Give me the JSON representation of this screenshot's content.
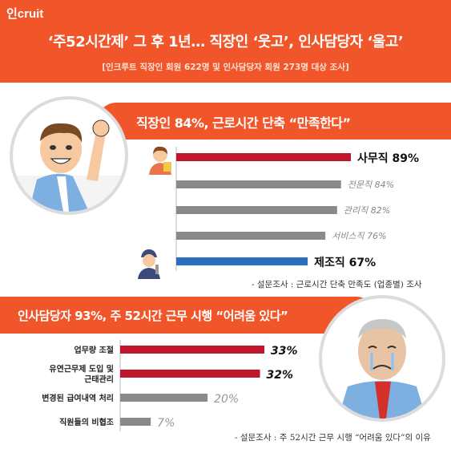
{
  "header": {
    "logo": "인cruit",
    "title": "‘주52시간제’ 그 후 1년… 직장인 ‘웃고’, 인사담당자 ‘울고’",
    "subtitle": "[인크루트 직장인 회원 622명 및 인사담당자 회원 273명 대상 조사]"
  },
  "section1": {
    "banner": "직장인 84%, 근로시간 단축 “만족한다”",
    "source": "- 설문조사 : 근로시간 단축 만족도 (업종별) 조사"
  },
  "section2": {
    "banner": "인사담당자 93%, 주 52시간 근무 시행 “어려움 있다”",
    "source": "- 설문조사 : 주 52시간 근무 시행 “어려움 있다”의 이유"
  },
  "colors": {
    "accent": "#f0562a",
    "red": "#c0152a",
    "gray": "#8a8a8a",
    "blue": "#2a6fbf"
  },
  "chart_data": [
    {
      "type": "bar",
      "orientation": "horizontal",
      "categories": [
        "사무직",
        "전문직",
        "관리직",
        "서비스직",
        "제조직"
      ],
      "values": [
        89,
        84,
        82,
        76,
        67
      ],
      "data_labels": [
        "사무직 89%",
        "전문직 84%",
        "관리직 82%",
        "서비스직 76%",
        "제조직 67%"
      ],
      "bar_colors": [
        "red",
        "gray",
        "gray",
        "gray",
        "blue"
      ],
      "emphasis": [
        true,
        false,
        false,
        false,
        true
      ]
    },
    {
      "type": "bar",
      "orientation": "horizontal",
      "categories": [
        "업무량 조절",
        "유연근무제 도입 및 근태관리",
        "변경된 급여내역 처리",
        "직원들의 비협조"
      ],
      "category_lines": [
        [
          "업무량 조절"
        ],
        [
          "유연근무제 도입 및",
          "근태관리"
        ],
        [
          "변경된 급여내역 처리"
        ],
        [
          "직원들의 비협조"
        ]
      ],
      "values": [
        33,
        32,
        20,
        7
      ],
      "data_labels": [
        "33%",
        "32%",
        "20%",
        "7%"
      ],
      "bar_colors": [
        "red",
        "red",
        "gray",
        "gray"
      ],
      "emphasis": [
        true,
        true,
        false,
        false
      ]
    }
  ]
}
